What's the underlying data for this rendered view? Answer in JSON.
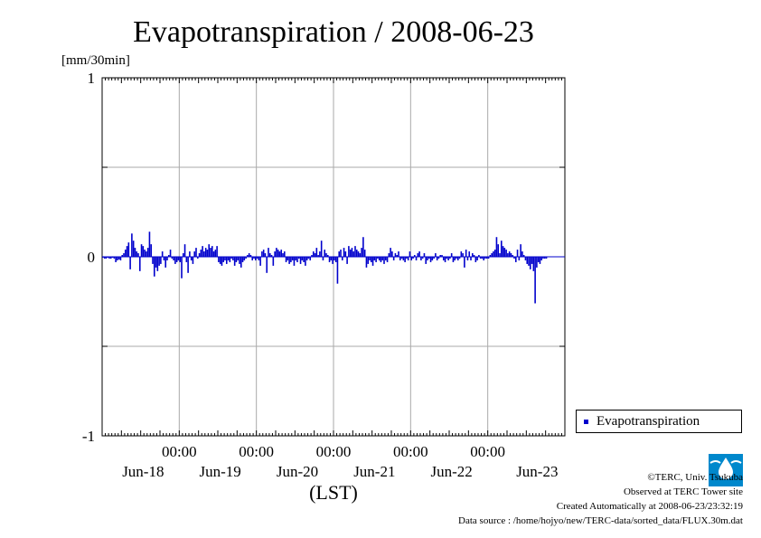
{
  "chart_data": {
    "type": "bar",
    "title": "Evapotranspiration / 2008-06-23",
    "ylabel": "[mm/30min]",
    "xlabel": "(LST)",
    "ylim": [
      -1,
      1
    ],
    "y_ticks": [
      {
        "value": 1,
        "label": "1"
      },
      {
        "value": 0.5,
        "label": ""
      },
      {
        "value": 0,
        "label": "0"
      },
      {
        "value": -0.5,
        "label": ""
      },
      {
        "value": -1,
        "label": "-1"
      }
    ],
    "x_range_days": [
      0,
      6
    ],
    "x_ticks": [
      {
        "day": 1,
        "time": "00:00",
        "date": "Jun-18"
      },
      {
        "day": 2,
        "time": "00:00",
        "date": "Jun-19"
      },
      {
        "day": 3,
        "time": "00:00",
        "date": "Jun-20"
      },
      {
        "day": 4,
        "time": "00:00",
        "date": "Jun-21"
      },
      {
        "day": 5,
        "time": "00:00",
        "date": "Jun-22"
      },
      {
        "day": null,
        "time": "",
        "date": "Jun-23"
      }
    ],
    "grid": true,
    "legend_position": "right",
    "series": [
      {
        "name": "Evapotranspiration",
        "color": "#0000cc",
        "interval_hours": 0.5,
        "values": [
          -0.005,
          -0.01,
          -0.01,
          -0.005,
          -0.01,
          -0.01,
          -0.005,
          -0.01,
          -0.03,
          -0.02,
          -0.015,
          -0.02,
          0.01,
          0.02,
          0.04,
          0.06,
          0.08,
          -0.07,
          0.13,
          0.09,
          0.05,
          0.03,
          0.02,
          -0.08,
          0.07,
          0.06,
          0.04,
          0.03,
          0.05,
          0.14,
          0.07,
          -0.04,
          -0.11,
          -0.06,
          -0.08,
          -0.05,
          -0.04,
          0.03,
          -0.02,
          -0.06,
          -0.02,
          0.01,
          0.04,
          -0.01,
          -0.02,
          -0.04,
          -0.03,
          -0.02,
          -0.03,
          -0.12,
          0.02,
          0.07,
          -0.03,
          -0.09,
          0.03,
          -0.02,
          -0.04,
          0.03,
          0.05,
          -0.01,
          0.02,
          0.04,
          0.06,
          0.03,
          0.05,
          0.04,
          0.07,
          0.05,
          0.06,
          0.03,
          0.04,
          0.06,
          -0.03,
          -0.04,
          -0.05,
          -0.03,
          -0.02,
          -0.04,
          -0.02,
          -0.03,
          -0.01,
          -0.02,
          -0.05,
          -0.03,
          -0.02,
          -0.04,
          -0.06,
          -0.03,
          -0.02,
          -0.01,
          0.01,
          0.02,
          0.01,
          -0.02,
          -0.01,
          -0.02,
          -0.01,
          -0.02,
          -0.05,
          0.03,
          0.04,
          0.02,
          -0.09,
          0.05,
          0.02,
          0.01,
          -0.05,
          0.03,
          0.05,
          0.04,
          0.03,
          0.04,
          0.02,
          0.03,
          -0.03,
          -0.02,
          -0.04,
          -0.03,
          -0.02,
          -0.05,
          -0.02,
          -0.03,
          -0.01,
          -0.04,
          -0.02,
          -0.03,
          -0.05,
          -0.02,
          -0.01,
          -0.02,
          0.01,
          0.03,
          0.02,
          0.05,
          0.01,
          0.03,
          0.09,
          -0.02,
          0.04,
          0.02,
          0.01,
          -0.03,
          -0.02,
          -0.04,
          -0.02,
          -0.03,
          -0.15,
          0.03,
          0.04,
          -0.02,
          0.05,
          0.03,
          -0.04,
          0.06,
          0.04,
          0.05,
          0.03,
          0.06,
          0.04,
          0.03,
          0.02,
          0.05,
          0.11,
          0.04,
          -0.06,
          -0.04,
          -0.02,
          -0.03,
          -0.05,
          -0.02,
          -0.03,
          -0.01,
          -0.02,
          -0.03,
          -0.02,
          -0.04,
          -0.02,
          -0.03,
          0.02,
          0.05,
          0.03,
          -0.02,
          0.02,
          0.01,
          0.03,
          -0.02,
          -0.01,
          -0.02,
          -0.03,
          -0.01,
          -0.02,
          0.03,
          -0.02,
          -0.01,
          0.01,
          -0.02,
          0.02,
          0.03,
          -0.02,
          -0.01,
          0.02,
          -0.04,
          -0.02,
          -0.01,
          -0.03,
          -0.02,
          -0.01,
          0.02,
          -0.02,
          -0.01,
          0.01,
          0.01,
          -0.02,
          -0.03,
          -0.01,
          -0.02,
          -0.01,
          0.02,
          -0.03,
          -0.02,
          -0.01,
          -0.02,
          -0.01,
          0.03,
          0.02,
          -0.06,
          0.04,
          -0.02,
          0.03,
          -0.02,
          0.02,
          0.01,
          -0.03,
          -0.02,
          0.01,
          -0.01,
          -0.01,
          -0.02,
          -0.01,
          -0.01,
          -0.01,
          0.01,
          0.02,
          0.03,
          0.04,
          0.11,
          0.07,
          0.02,
          0.09,
          0.06,
          0.05,
          0.04,
          0.02,
          0.03,
          0.02,
          0.01,
          -0.01,
          -0.03,
          0.04,
          -0.02,
          0.07,
          0.03,
          0.01,
          -0.02,
          -0.04,
          -0.05,
          -0.07,
          -0.04,
          -0.08,
          -0.26,
          -0.06,
          -0.03,
          -0.04,
          -0.02,
          -0.01,
          -0.01,
          -0.01
        ]
      }
    ]
  },
  "footer": {
    "copyright": "©TERC, Univ. Tsukuba",
    "observed": "Observed at TERC Tower site",
    "created": "Created Automatically at 2008-06-23/23:32:19",
    "source": "Data source : /home/hojyo/new/TERC-data/sorted_data/FLUX.30m.dat"
  },
  "logo": {
    "text": "TERC",
    "color": "#0088cc"
  }
}
